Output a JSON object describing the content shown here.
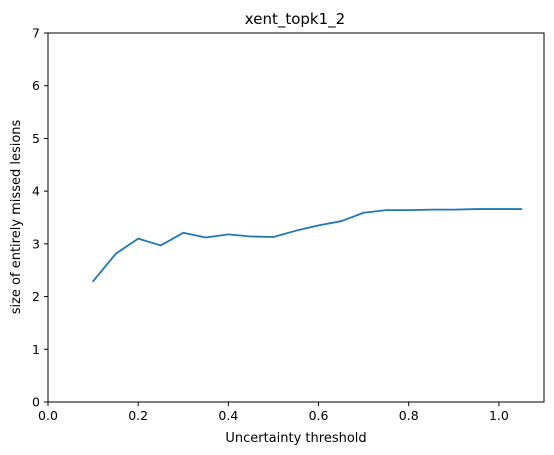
{
  "chart_data": {
    "type": "line",
    "title": "xent_topk1_2",
    "xlabel": "Uncertainty threshold",
    "ylabel": "size of entirely missed lesions",
    "xlim": [
      0.0,
      1.1
    ],
    "ylim": [
      0,
      7
    ],
    "xticks": [
      0.0,
      0.2,
      0.4,
      0.6,
      0.8,
      1.0
    ],
    "xtick_labels": [
      "0.0",
      "0.2",
      "0.4",
      "0.6",
      "0.8",
      "1.0"
    ],
    "yticks": [
      0,
      1,
      2,
      3,
      4,
      5,
      6,
      7
    ],
    "ytick_labels": [
      "0",
      "1",
      "2",
      "3",
      "4",
      "5",
      "6",
      "7"
    ],
    "grid": false,
    "line_color": "#1f77b4",
    "series": [
      {
        "x": [
          0.1,
          0.15,
          0.2,
          0.25,
          0.3,
          0.35,
          0.4,
          0.45,
          0.5,
          0.55,
          0.6,
          0.65,
          0.7,
          0.75,
          0.8,
          0.85,
          0.9,
          0.95,
          1.0,
          1.05
        ],
        "values": [
          2.29,
          2.81,
          3.1,
          2.97,
          3.21,
          3.12,
          3.18,
          3.14,
          3.13,
          3.25,
          3.35,
          3.43,
          3.59,
          3.64,
          3.64,
          3.65,
          3.65,
          3.66,
          3.66,
          3.66
        ]
      }
    ]
  }
}
